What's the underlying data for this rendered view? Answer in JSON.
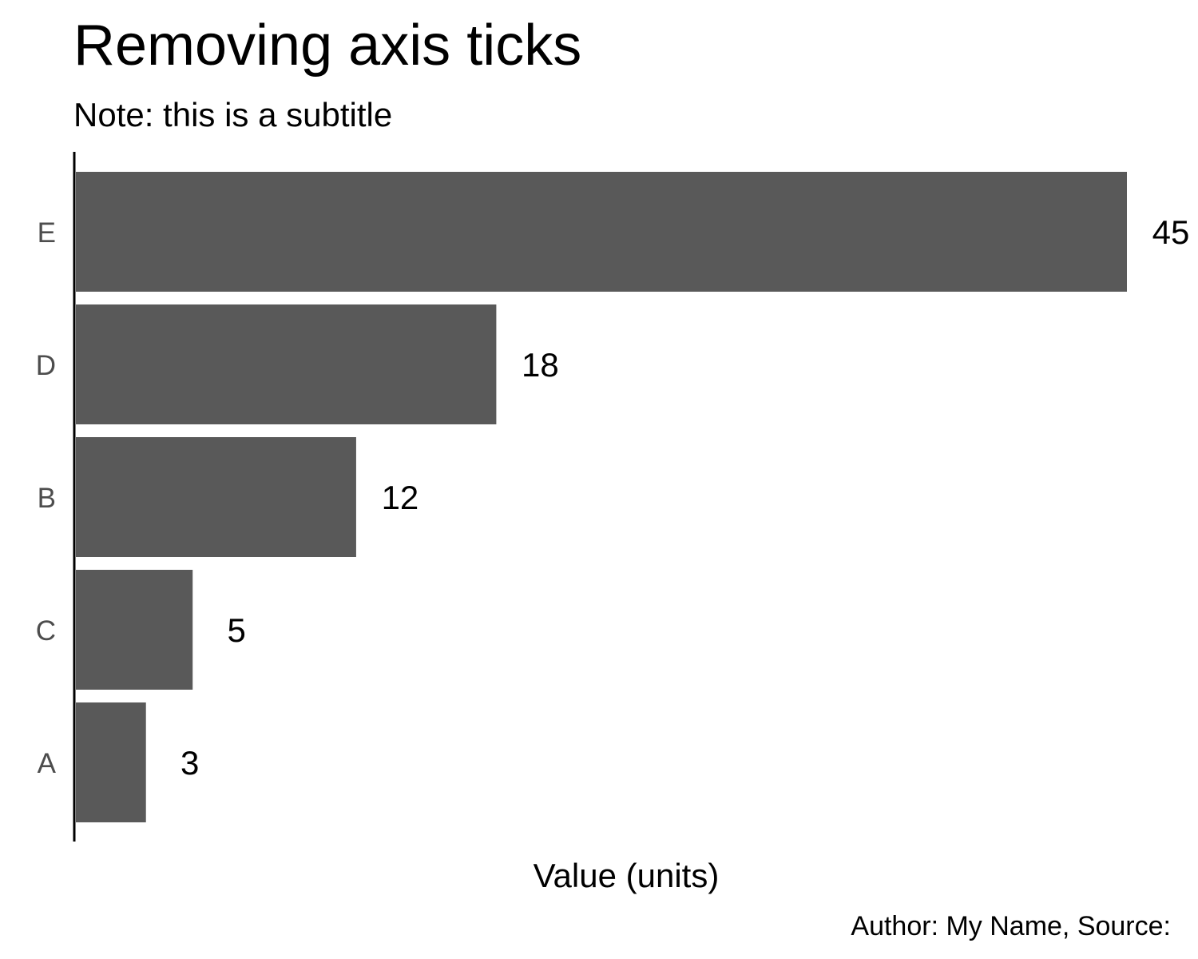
{
  "chart_data": {
    "type": "bar",
    "orientation": "horizontal",
    "title": "Removing axis ticks",
    "subtitle": "Note: this is a subtitle",
    "xlabel": "Value (units)",
    "ylabel": "",
    "caption": "Author: My Name, Source:",
    "categories": [
      "E",
      "D",
      "B",
      "C",
      "A"
    ],
    "values": [
      45,
      18,
      12,
      5,
      3
    ],
    "data_labels": [
      "45",
      "18",
      "12",
      "5",
      "3"
    ],
    "xlim": [
      0,
      45
    ],
    "grid": false,
    "x_ticks_visible": false,
    "bar_color": "#595959"
  }
}
